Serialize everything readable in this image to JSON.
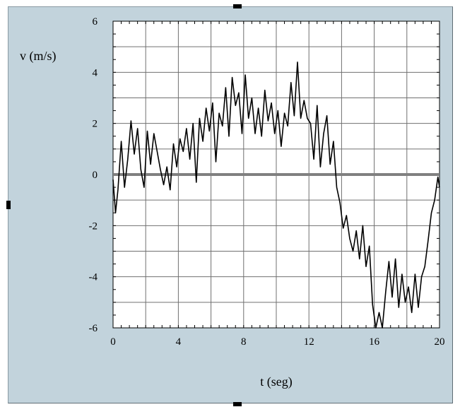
{
  "chart_data": {
    "type": "line",
    "xlabel": "t (seg)",
    "ylabel": "v (m/s)",
    "xlim": [
      0,
      20
    ],
    "ylim": [
      -6,
      6
    ],
    "x_ticks": [
      "0",
      "4",
      "8",
      "12",
      "16",
      "20"
    ],
    "x_tick_values": [
      0,
      4,
      8,
      12,
      16,
      20
    ],
    "y_ticks": [
      "6",
      "4",
      "2",
      "0",
      "-2",
      "-4",
      "-6"
    ],
    "y_tick_values": [
      6,
      4,
      2,
      0,
      -2,
      -4,
      -6
    ],
    "grid": true,
    "reference_line": {
      "y": 0,
      "color": "#808080"
    },
    "series": [
      {
        "color": "#000000",
        "x": [
          0,
          0.15,
          0.3,
          0.5,
          0.7,
          0.9,
          1.1,
          1.3,
          1.5,
          1.7,
          1.9,
          2.1,
          2.3,
          2.5,
          2.7,
          2.9,
          3.1,
          3.3,
          3.5,
          3.7,
          3.9,
          4.1,
          4.3,
          4.5,
          4.7,
          4.9,
          5.1,
          5.3,
          5.5,
          5.7,
          5.9,
          6.1,
          6.3,
          6.5,
          6.7,
          6.9,
          7.1,
          7.3,
          7.5,
          7.7,
          7.9,
          8.1,
          8.3,
          8.5,
          8.7,
          8.9,
          9.1,
          9.3,
          9.5,
          9.7,
          9.9,
          10.1,
          10.3,
          10.5,
          10.7,
          10.9,
          11.1,
          11.3,
          11.5,
          11.7,
          11.9,
          12.1,
          12.3,
          12.5,
          12.7,
          12.9,
          13.1,
          13.3,
          13.5,
          13.7,
          13.9,
          14.1,
          14.3,
          14.5,
          14.7,
          14.9,
          15.1,
          15.3,
          15.5,
          15.7,
          15.9,
          16.1,
          16.3,
          16.5,
          16.7,
          16.9,
          17.1,
          17.3,
          17.5,
          17.7,
          17.9,
          18.1,
          18.3,
          18.5,
          18.7,
          18.9,
          19.1,
          19.3,
          19.5,
          19.7,
          19.9,
          20
        ],
        "y": [
          -0.2,
          -1.5,
          -0.6,
          1.3,
          -0.5,
          0.6,
          2.1,
          0.8,
          1.8,
          0.2,
          -0.5,
          1.7,
          0.4,
          1.6,
          0.9,
          0.2,
          -0.4,
          0.3,
          -0.6,
          1.2,
          0.3,
          1.4,
          0.9,
          1.8,
          0.6,
          2.0,
          -0.3,
          2.2,
          1.3,
          2.6,
          1.7,
          2.8,
          0.5,
          2.4,
          1.9,
          3.4,
          1.5,
          3.8,
          2.7,
          3.2,
          1.6,
          3.9,
          2.2,
          3.0,
          1.6,
          2.6,
          1.5,
          3.3,
          2.1,
          2.8,
          1.6,
          2.5,
          1.1,
          2.4,
          1.9,
          3.6,
          2.3,
          4.4,
          2.2,
          2.9,
          2.2,
          2.0,
          0.6,
          2.7,
          0.3,
          1.6,
          2.3,
          0.4,
          1.3,
          -0.5,
          -1.1,
          -2.1,
          -1.6,
          -2.5,
          -3.0,
          -2.2,
          -3.3,
          -2.0,
          -3.6,
          -2.8,
          -5.1,
          -6.0,
          -5.4,
          -6.0,
          -4.6,
          -3.4,
          -4.8,
          -3.3,
          -5.2,
          -3.9,
          -5.0,
          -4.4,
          -5.4,
          -3.9,
          -5.2,
          -4.0,
          -3.6,
          -2.6,
          -1.5,
          -1.0,
          -0.1,
          -0.5
        ]
      }
    ]
  }
}
